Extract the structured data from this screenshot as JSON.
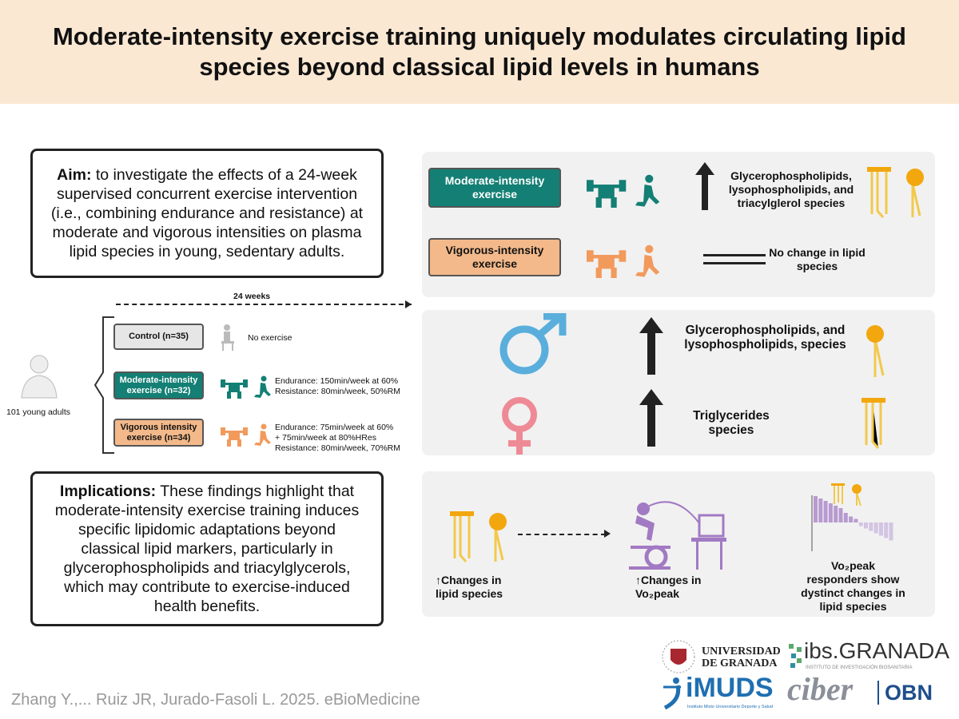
{
  "title": "Moderate-intensity exercise training uniquely modulates circulating lipid species beyond classical lipid levels in humans",
  "aim": {
    "label": "Aim:",
    "text": " to investigate the effects of a 24-week supervised concurrent exercise intervention (i.e., combining endurance and resistance) at moderate and vigorous intensities on plasma lipid species in young, sedentary adults."
  },
  "design": {
    "duration": "24 weeks",
    "participants": "101 young adults",
    "groups": [
      {
        "name": "Control (n=35)",
        "desc": "No exercise"
      },
      {
        "name": "Moderate-intensity exercise (n=32)",
        "desc1": "Endurance: 150min/week at 60%",
        "desc2": "Resistance: 80min/week, 50%RM"
      },
      {
        "name": "Vigorous intensity exercise (n=34)",
        "desc1": "Endurance: 75min/week at 60%",
        "desc2": "+ 75min/week at 80%HRes",
        "desc3": "Resistance: 80min/week, 70%RM"
      }
    ]
  },
  "implications": {
    "label": "Implications:",
    "text": " These findings highlight that moderate-intensity exercise training induces specific lipidomic adaptations beyond classical lipid markers, particularly in glycerophospholipids and triacylglycerols, which may contribute to exercise-induced health benefits."
  },
  "results": {
    "moderate": {
      "label": "Moderate-intensity exercise",
      "effect": "Glycerophospholipids, lysophospholipids, and triacylglerol species"
    },
    "vigorous": {
      "label": "Vigorous-intensity exercise",
      "effect": "No change in lipid species"
    },
    "male": {
      "effect": "Glycerophospholipids, and lysophospholipids, species"
    },
    "female": {
      "effect": "Triglycerides species"
    },
    "vo2": {
      "lipid_changes": "↑Changes in lipid species",
      "vo2_changes": "↑Changes in Vo₂peak",
      "responders": "Vo₂peak responders show dystinct changes in lipid species"
    }
  },
  "citation": "Zhang Y.,... Ruiz JR, Jurado-Fasoli L. 2025. eBioMedicine",
  "logos": {
    "ugr1": "UNIVERSIDAD",
    "ugr2": "DE GRANADA",
    "ibs": "ibs.GRANADA",
    "ibs_sub": "INSTITUTO DE INVESTIGACIÓN BIOSANITARIA",
    "imuds": "iMUDS",
    "imuds_sub": "Instituto Mixto Universitario Deporte y Salud",
    "ciber": "ciber",
    "obn": "OBN"
  },
  "colors": {
    "moderate": "#147f74",
    "vigorous": "#f3b98a",
    "control": "#e6e6e6",
    "male": "#5aaedc",
    "female": "#ee8a95",
    "lipid": "#f2c94c",
    "vo2": "#a27ac3",
    "header": "#fbe8d3"
  }
}
